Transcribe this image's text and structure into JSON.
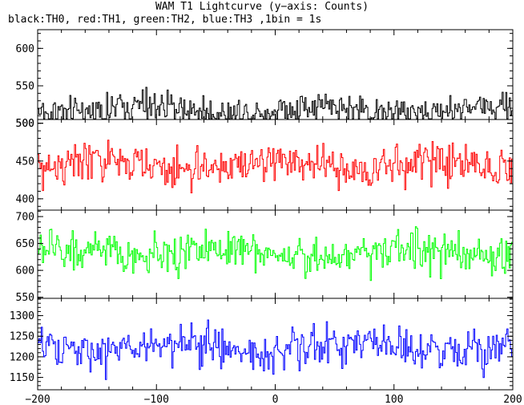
{
  "title": "WAM T1 Lightcurve (y−axis: Counts)",
  "subtitle": "black:TH0, red:TH1, green:TH2, blue:TH3 ,1bin = 1s",
  "chart_data": {
    "type": "line",
    "x_ticks": [
      "−200",
      "−100",
      "0",
      "100",
      "200"
    ],
    "x_tick_values": [
      -200,
      -100,
      0,
      100,
      200
    ],
    "xlim": [
      -200,
      200
    ],
    "panels": [
      {
        "name": "TH0",
        "color": "#000000",
        "ylim": [
          505,
          625
        ],
        "y_ticks": [
          "500",
          "550",
          "600"
        ],
        "y_tick_values": [
          500,
          550,
          600
        ],
        "mean": 518,
        "spread": 14
      },
      {
        "name": "TH1",
        "color": "#ff0000",
        "ylim": [
          385,
          505
        ],
        "y_ticks": [
          "400",
          "450",
          "500"
        ],
        "y_tick_values": [
          400,
          450,
          500
        ],
        "mean": 444,
        "spread": 17
      },
      {
        "name": "TH2",
        "color": "#00ff00",
        "ylim": [
          548,
          712
        ],
        "y_ticks": [
          "550",
          "600",
          "650",
          "700"
        ],
        "y_tick_values": [
          550,
          600,
          650,
          700
        ],
        "mean": 633,
        "spread": 23
      },
      {
        "name": "TH3",
        "color": "#0000ff",
        "ylim": [
          1120,
          1342
        ],
        "y_ticks": [
          "1150",
          "1200",
          "1250",
          "1300"
        ],
        "y_tick_values": [
          1150,
          1200,
          1250,
          1300
        ],
        "mean": 1222,
        "spread": 32
      }
    ]
  }
}
